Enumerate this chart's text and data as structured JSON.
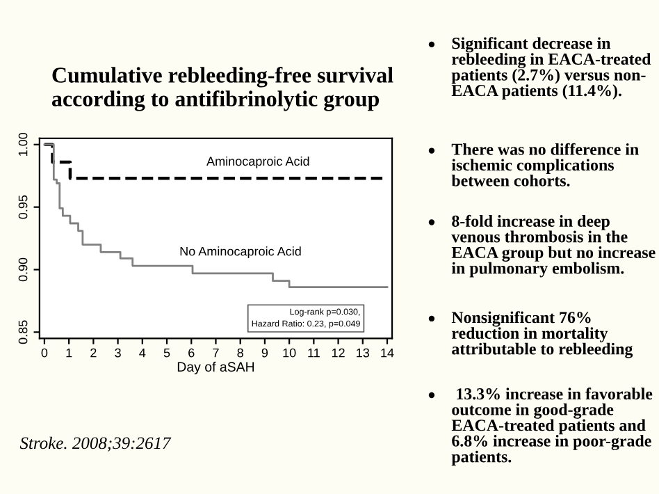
{
  "chart_data": {
    "type": "step",
    "title": "Cumulative rebleeding-free survival\naccording to antifibrinolytic group",
    "xlabel": "Day of aSAH",
    "series": [
      {
        "name": "Aminocaproic Acid",
        "color": "#000000",
        "line_style": "dashed",
        "x": [
          0,
          0.33,
          1.05,
          14
        ],
        "values": [
          1.0,
          0.986,
          0.973,
          0.973
        ]
      },
      {
        "name": "No Aminocaproic Acid",
        "color": "#808080",
        "line_style": "solid",
        "x": [
          0,
          0.38,
          0.5,
          0.62,
          0.75,
          1.05,
          1.38,
          1.56,
          2.3,
          3.1,
          3.6,
          6.05,
          9.33,
          10.0,
          14
        ],
        "values": [
          1.0,
          0.972,
          0.969,
          0.949,
          0.943,
          0.937,
          0.931,
          0.92,
          0.914,
          0.909,
          0.903,
          0.897,
          0.891,
          0.886,
          0.886
        ]
      }
    ],
    "xlim": [
      -0.2,
      14.2
    ],
    "ylim": [
      0.845,
      1.005
    ],
    "xticks": [
      0,
      1,
      2,
      3,
      4,
      5,
      6,
      7,
      8,
      9,
      10,
      11,
      12,
      13,
      14
    ],
    "yticks": [
      {
        "value": 0.85,
        "label": "0.85"
      },
      {
        "value": 0.9,
        "label": "0.90"
      },
      {
        "value": 0.95,
        "label": "0.95"
      },
      {
        "value": 1.0,
        "label": "1.00"
      }
    ],
    "grid": false,
    "legend": false,
    "annotations": [
      "Log-rank p=0.030,\nHazard Ratio: 0.23, p=0.049",
      "Significant decrease in\nrebleeding in EACA-treated\npatients (2.7%) versus non-\nEACA patients (11.4%).",
      "There was no difference in\nischemic complications\nbetween cohorts.",
      "8-fold increase in deep\nvenous thrombosis in the\nEACA group but no increase\nin pulmonary embolism.",
      "Nonsignificant 76%\nreduction in mortality\nattributable to rebleeding",
      " 13.3% increase in favorable\noutcome in good-grade\nEACA-treated patients and\n6.8% increase in poor-grade\npatients.",
      "Stroke. 2008;39:2617"
    ]
  }
}
